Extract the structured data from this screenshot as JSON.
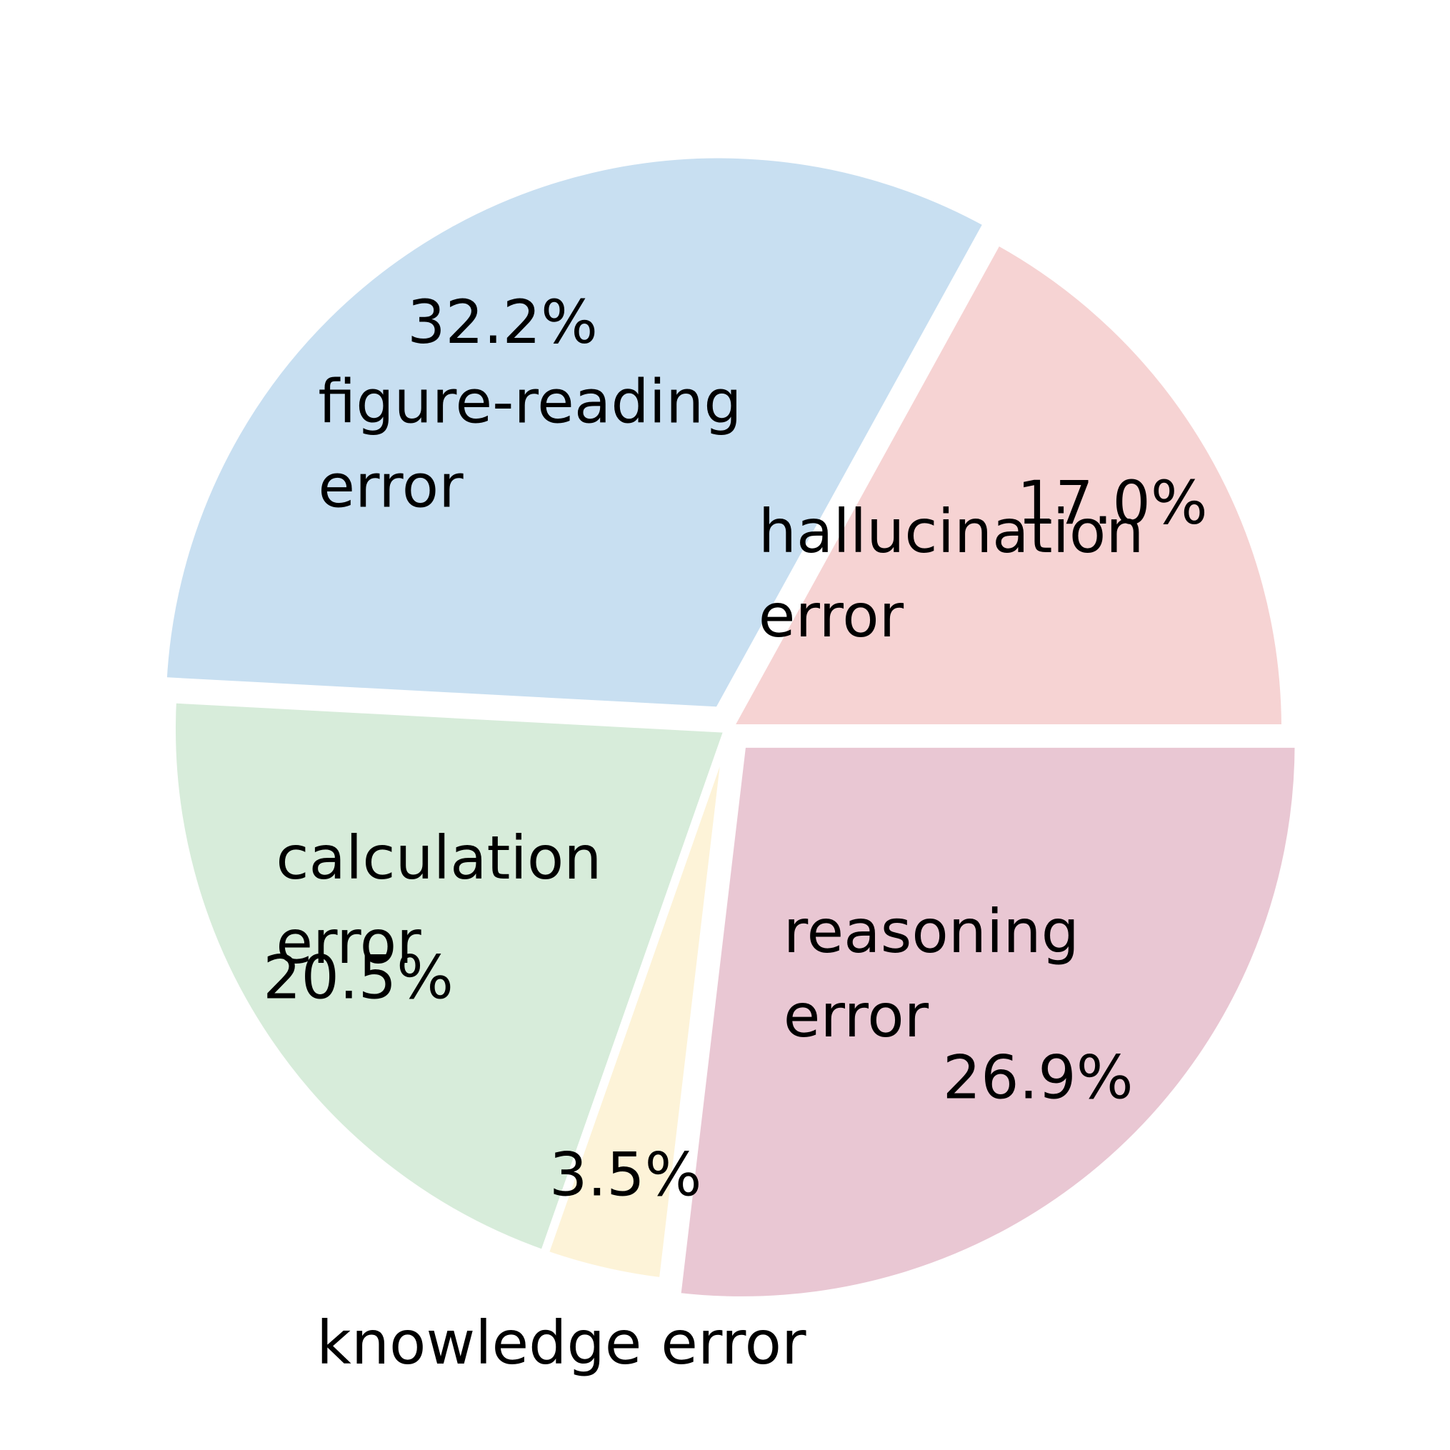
{
  "chart_data": {
    "type": "pie",
    "title": "",
    "start_angle_deg": 0,
    "direction": "counterclockwise",
    "slices": [
      {
        "name": "hallucination error",
        "label_lines": [
          "hallucination",
          "error"
        ],
        "value": 17.0,
        "pct_label": "17.0%",
        "color": "#f6d3d3",
        "exploded": false
      },
      {
        "name": "figure-reading error",
        "label_lines": [
          "figure-reading",
          "error"
        ],
        "value": 32.2,
        "pct_label": "32.2%",
        "color": "#c8dff1",
        "exploded": true
      },
      {
        "name": "calculation error",
        "label_lines": [
          "calculation",
          "error"
        ],
        "value": 20.5,
        "pct_label": "20.5%",
        "color": "#d7ecda",
        "exploded": false
      },
      {
        "name": "knowledge error",
        "label_lines": [
          "knowledge error"
        ],
        "value": 3.5,
        "pct_label": "3.5%",
        "color": "#fdf3d8",
        "exploded": false
      },
      {
        "name": "reasoning error",
        "label_lines": [
          "reasoning",
          "error"
        ],
        "value": 26.9,
        "pct_label": "26.9%",
        "color": "#e9c7d3",
        "exploded": true
      }
    ]
  }
}
